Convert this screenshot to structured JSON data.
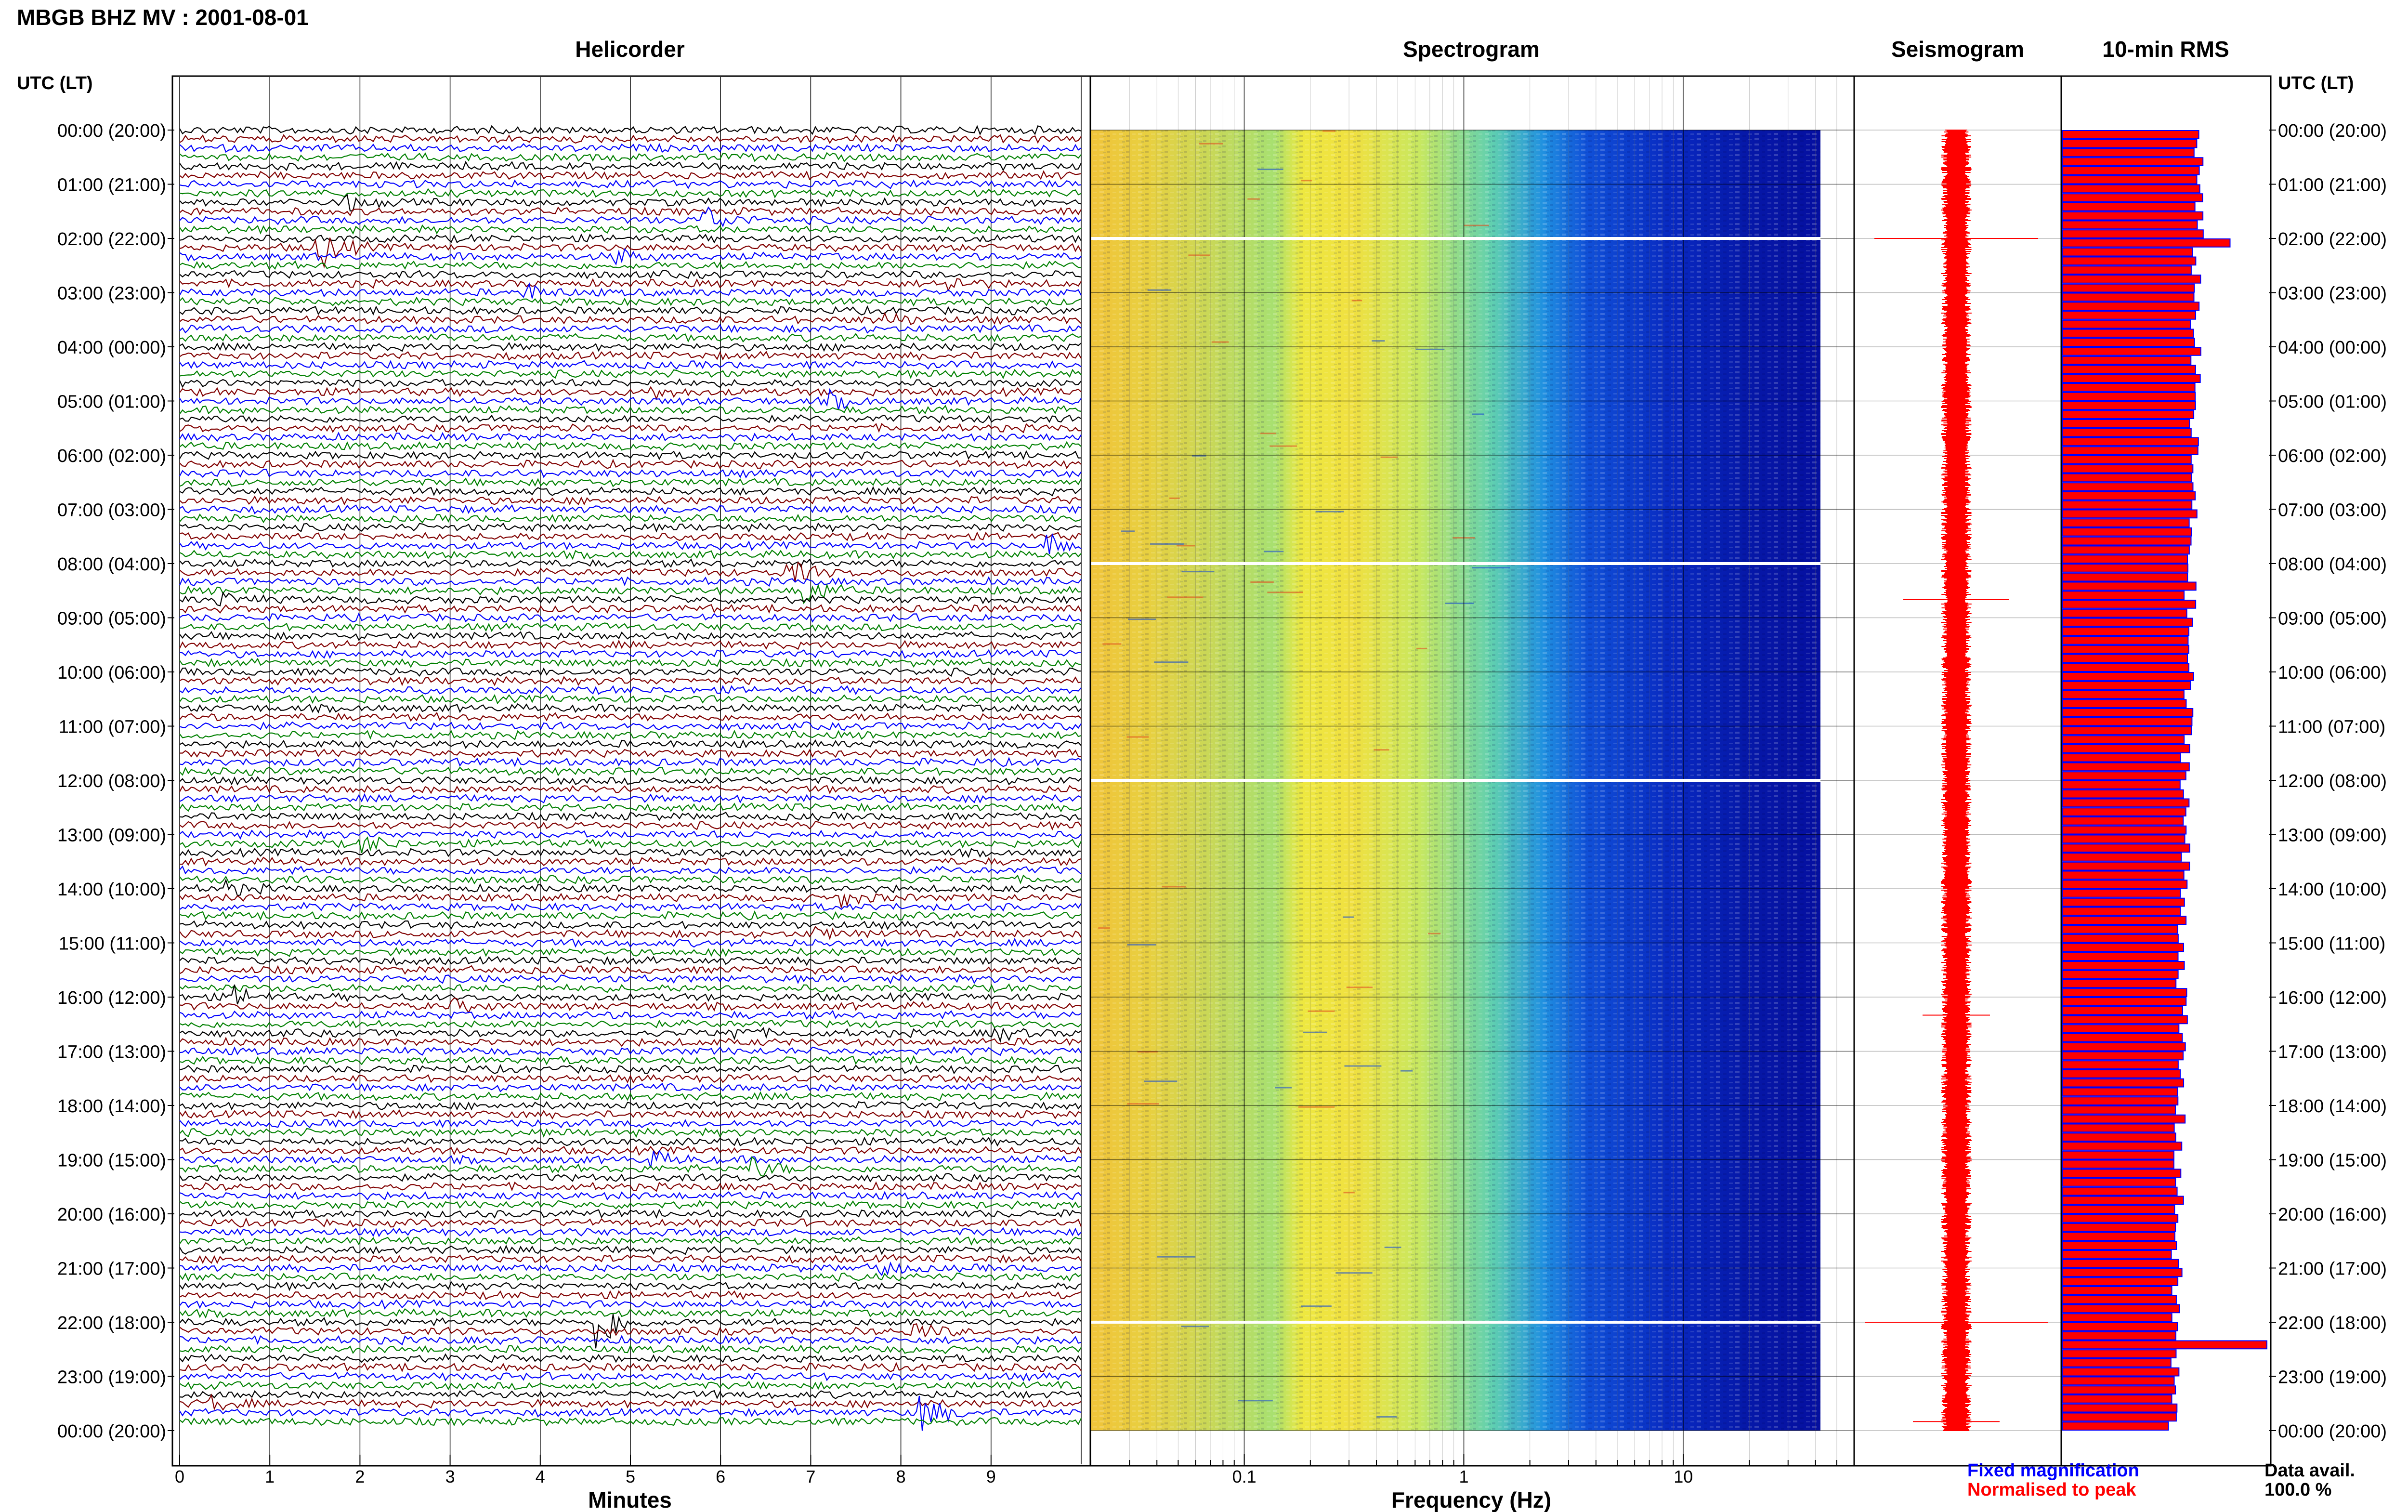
{
  "title": "MBGB BHZ MV : 2001-08-01",
  "panels": {
    "helicorder": "Helicorder",
    "spectrogram": "Spectrogram",
    "seismogram": "Seismogram",
    "rms": "10-min RMS"
  },
  "utc_header_left": "UTC (LT)",
  "utc_header_right": "UTC (LT)",
  "time_labels": [
    "00:00 (20:00)",
    "01:00 (21:00)",
    "02:00 (22:00)",
    "03:00 (23:00)",
    "04:00 (00:00)",
    "05:00 (01:00)",
    "06:00 (02:00)",
    "07:00 (03:00)",
    "08:00 (04:00)",
    "09:00 (05:00)",
    "10:00 (06:00)",
    "11:00 (07:00)",
    "12:00 (08:00)",
    "13:00 (09:00)",
    "14:00 (10:00)",
    "15:00 (11:00)",
    "16:00 (12:00)",
    "17:00 (13:00)",
    "18:00 (14:00)",
    "19:00 (15:00)",
    "20:00 (16:00)",
    "21:00 (17:00)",
    "22:00 (18:00)",
    "23:00 (19:00)",
    "00:00 (20:00)"
  ],
  "helicorder_axis": {
    "xlabel": "Minutes",
    "ticks": [
      "0",
      "1",
      "2",
      "3",
      "4",
      "5",
      "6",
      "7",
      "8",
      "9"
    ]
  },
  "spectrogram_axis": {
    "xlabel": "Frequency (Hz)",
    "ticks": [
      "0.1",
      "1",
      "10"
    ]
  },
  "legend": {
    "fixed": "Fixed magnification",
    "normalised": "Normalised to peak"
  },
  "data_avail": {
    "label": "Data avail.",
    "value": "100.0 %"
  },
  "colors": {
    "blue": "#0000ff",
    "red": "#ff0000",
    "green": "#008000",
    "maroon": "#800000",
    "black": "#000000",
    "rms_fill": "#ff0000",
    "rms_edge": "#0000ff"
  },
  "chart_data": [
    {
      "type": "line",
      "title": "Helicorder",
      "xlabel": "Minutes",
      "xlim": [
        0,
        10
      ],
      "rows": 144,
      "row_minutes": 10,
      "series_colors": [
        "black",
        "maroon",
        "blue",
        "green"
      ],
      "events": [
        {
          "row": 8,
          "minute": 1.8,
          "amp": 1.2
        },
        {
          "row": 10,
          "minute": 5.8,
          "amp": 1.8
        },
        {
          "row": 13,
          "minute": 1.5,
          "amp": 3.0
        },
        {
          "row": 14,
          "minute": 4.8,
          "amp": 1.0
        },
        {
          "row": 17,
          "minute": 8.5,
          "amp": 1.0
        },
        {
          "row": 18,
          "minute": 3.8,
          "amp": 1.0
        },
        {
          "row": 21,
          "minute": 7.8,
          "amp": 0.8
        },
        {
          "row": 29,
          "minute": 5.2,
          "amp": 0.8
        },
        {
          "row": 30,
          "minute": 7.2,
          "amp": 1.0
        },
        {
          "row": 46,
          "minute": 9.6,
          "amp": 1.5
        },
        {
          "row": 49,
          "minute": 6.7,
          "amp": 1.8
        },
        {
          "row": 51,
          "minute": 6.9,
          "amp": 2.0
        },
        {
          "row": 52,
          "minute": 0.4,
          "amp": 0.8
        },
        {
          "row": 79,
          "minute": 2.0,
          "amp": 1.2
        },
        {
          "row": 84,
          "minute": 0.5,
          "amp": 0.8
        },
        {
          "row": 85,
          "minute": 7.3,
          "amp": 1.0
        },
        {
          "row": 89,
          "minute": 7.0,
          "amp": 0.8
        },
        {
          "row": 96,
          "minute": 0.6,
          "amp": 1.2
        },
        {
          "row": 97,
          "minute": 3.0,
          "amp": 0.8
        },
        {
          "row": 100,
          "minute": 6.0,
          "amp": 1.2
        },
        {
          "row": 100,
          "minute": 9.0,
          "amp": 1.0
        },
        {
          "row": 114,
          "minute": 5.2,
          "amp": 1.0
        },
        {
          "row": 115,
          "minute": 6.3,
          "amp": 1.5
        },
        {
          "row": 126,
          "minute": 7.7,
          "amp": 1.2
        },
        {
          "row": 132,
          "minute": 4.6,
          "amp": 4.0
        },
        {
          "row": 133,
          "minute": 8.1,
          "amp": 1.2
        },
        {
          "row": 141,
          "minute": 0.3,
          "amp": 1.0
        },
        {
          "row": 142,
          "minute": 8.2,
          "amp": 2.5
        }
      ]
    },
    {
      "type": "heatmap",
      "title": "Spectrogram",
      "xlabel": "Frequency (Hz)",
      "xscale": "log",
      "xlim": [
        0.02,
        50
      ],
      "data_gap_rows": [
        12,
        48,
        72,
        132
      ]
    },
    {
      "type": "line",
      "title": "Seismogram",
      "spikes": [
        {
          "row": 12,
          "amp": 0.85
        },
        {
          "row": 52,
          "amp": 0.55
        },
        {
          "row": 98,
          "amp": 0.35
        },
        {
          "row": 132,
          "amp": 0.95
        },
        {
          "row": 143,
          "amp": 0.45
        }
      ]
    },
    {
      "type": "bar",
      "title": "10-min RMS",
      "orientation": "horizontal",
      "rows": 144,
      "peak_rows": [
        {
          "row": 12,
          "value": 0.82
        },
        {
          "row": 134,
          "value": 1.0
        }
      ]
    }
  ]
}
